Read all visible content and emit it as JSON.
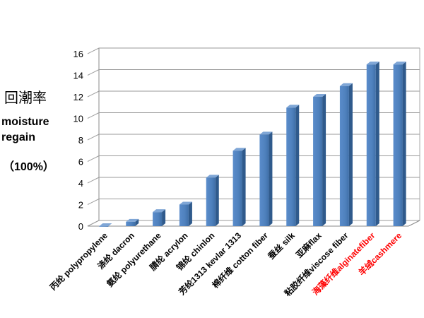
{
  "chart_data": {
    "type": "bar",
    "title": "",
    "ylabel_cn": "回潮率",
    "ylabel_en": "moisture regain",
    "ylabel_unit": "（100%）",
    "xlabel": "",
    "ylim": [
      0,
      16
    ],
    "yticks": [
      "0",
      "2",
      "4",
      "6",
      "8",
      "10",
      "12",
      "14",
      "16"
    ],
    "grid": true,
    "bar_color": "#4F81BD",
    "highlight_color": "#ff0000",
    "categories": [
      "丙纶 polypropylene",
      "涤纶 dacron",
      "氨纶 polyurethane",
      "腈纶 acrylon",
      "锦纶 chinlon",
      "芳纶1313 kevlar 1313",
      "棉纤维 cotton fiber",
      "蚕丝 silk",
      "亚麻flax",
      "粘胶纤维viscose fiber",
      "海藻纤维alginatefiber",
      "羊绒cashmere"
    ],
    "highlighted": [
      false,
      false,
      false,
      false,
      false,
      false,
      false,
      false,
      false,
      false,
      true,
      true
    ],
    "values": [
      0,
      0.4,
      1.3,
      2.0,
      4.5,
      7.0,
      8.5,
      11.0,
      12.0,
      13.0,
      15.0,
      15.0
    ]
  }
}
